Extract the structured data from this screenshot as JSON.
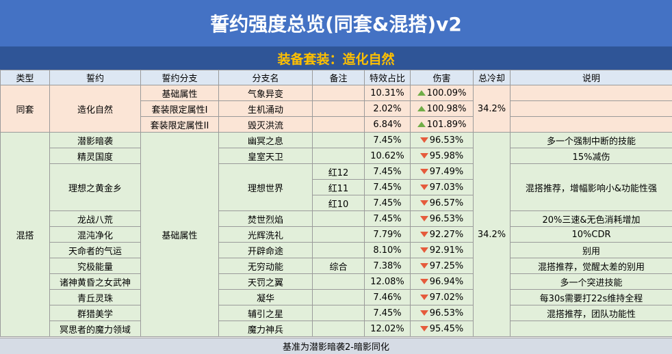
{
  "title": "誓约强度总览(同套&混搭)v2",
  "subtitle": "装备套装：造化自然",
  "headers": [
    "类型",
    "誓约",
    "誓约分支",
    "分支名",
    "备注",
    "特效占比",
    "伤害",
    "总冷却",
    "说明"
  ],
  "groups": {
    "tongtao": {
      "type": "同套",
      "vow": "造化自然",
      "cooldown": "34.2%"
    },
    "hunda": {
      "type": "混搭",
      "branch": "基础属性",
      "cooldown": "34.2%"
    }
  },
  "rows": [
    {
      "branch": "基础属性",
      "name": "气象异变",
      "pct": "10.31%",
      "dmg": "100.09%",
      "dir": "up"
    },
    {
      "branch": "套装限定属性I",
      "name": "生机涌动",
      "pct": "2.02%",
      "dmg": "100.98%",
      "dir": "up"
    },
    {
      "branch": "套装限定属性II",
      "name": "毁灭洪流",
      "pct": "6.84%",
      "dmg": "101.89%",
      "dir": "up"
    },
    {
      "vow": "潜影暗袭",
      "name": "幽冥之息",
      "pct": "7.45%",
      "dmg": "96.53%",
      "dir": "down",
      "desc": "多一个强制中断的技能"
    },
    {
      "vow": "精灵国度",
      "name": "皇室天卫",
      "pct": "10.62%",
      "dmg": "95.98%",
      "dir": "down",
      "desc": "15%减伤"
    },
    {
      "vow": "理想之黄金乡",
      "name": "理想世界",
      "note": "红12",
      "pct": "7.45%",
      "dmg": "97.49%",
      "dir": "down",
      "desc": "混搭推荐，增幅影响小&功能性强"
    },
    {
      "note": "红11",
      "pct": "7.45%",
      "dmg": "97.03%",
      "dir": "down"
    },
    {
      "note": "红10",
      "pct": "7.45%",
      "dmg": "96.57%",
      "dir": "down"
    },
    {
      "vow": "龙战八荒",
      "name": "焚世烈焰",
      "pct": "7.45%",
      "dmg": "96.53%",
      "dir": "down",
      "desc": "20%三速&无色消耗增加"
    },
    {
      "vow": "混沌净化",
      "name": "光辉洗礼",
      "pct": "7.79%",
      "dmg": "92.27%",
      "dir": "down",
      "desc": "10%CDR"
    },
    {
      "vow": "天命者的气运",
      "name": "开辟命途",
      "pct": "8.10%",
      "dmg": "92.91%",
      "dir": "down",
      "desc": "别用"
    },
    {
      "vow": "究极能量",
      "name": "无穷动能",
      "note": "综合",
      "pct": "7.38%",
      "dmg": "97.25%",
      "dir": "down",
      "desc": "混搭推荐，觉醒太差的别用"
    },
    {
      "vow": "诸神黄昏之女武神",
      "name": "天罚之翼",
      "pct": "12.08%",
      "dmg": "96.94%",
      "dir": "down",
      "desc": "多一个突进技能"
    },
    {
      "vow": "青丘灵珠",
      "name": "凝华",
      "pct": "7.46%",
      "dmg": "97.02%",
      "dir": "down",
      "desc": "每30s需要打22s维持全程"
    },
    {
      "vow": "群猎美学",
      "name": "辅引之星",
      "pct": "7.45%",
      "dmg": "96.53%",
      "dir": "down",
      "desc": "混搭推荐，团队功能性"
    },
    {
      "vow": "冥思者的魔力领域",
      "name": "魔力神兵",
      "pct": "12.02%",
      "dmg": "95.45%",
      "dir": "down",
      "desc": ""
    }
  ],
  "footer": "基准为潜影暗袭2-暗影同化",
  "colors": {
    "title_bg": "#4472c4",
    "subtitle_bg": "#2f5597",
    "subtitle_text": "#ffc000",
    "same_set_bg": "#fbe5d6",
    "mix_bg": "#e2efda",
    "up": "#70ad47",
    "down": "#e55b3c"
  }
}
